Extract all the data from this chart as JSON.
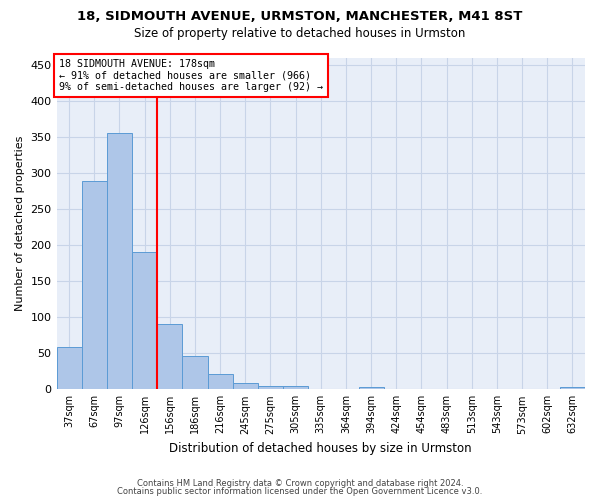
{
  "title1": "18, SIDMOUTH AVENUE, URMSTON, MANCHESTER, M41 8ST",
  "title2": "Size of property relative to detached houses in Urmston",
  "xlabel": "Distribution of detached houses by size in Urmston",
  "ylabel": "Number of detached properties",
  "footer1": "Contains HM Land Registry data © Crown copyright and database right 2024.",
  "footer2": "Contains public sector information licensed under the Open Government Licence v3.0.",
  "bin_labels": [
    "37sqm",
    "67sqm",
    "97sqm",
    "126sqm",
    "156sqm",
    "186sqm",
    "216sqm",
    "245sqm",
    "275sqm",
    "305sqm",
    "335sqm",
    "364sqm",
    "394sqm",
    "424sqm",
    "454sqm",
    "483sqm",
    "513sqm",
    "543sqm",
    "573sqm",
    "602sqm",
    "632sqm"
  ],
  "bar_heights": [
    59,
    289,
    355,
    191,
    91,
    46,
    21,
    9,
    4,
    4,
    0,
    0,
    3,
    0,
    0,
    0,
    0,
    0,
    0,
    0,
    3
  ],
  "bar_color": "#aec6e8",
  "bar_edge_color": "#5b9bd5",
  "grid_color": "#c8d4e8",
  "vline_x": 3.5,
  "annotation_text": "18 SIDMOUTH AVENUE: 178sqm\n← 91% of detached houses are smaller (966)\n9% of semi-detached houses are larger (92) →",
  "annotation_box_color": "white",
  "annotation_box_edge": "red",
  "vline_color": "red",
  "ylim": [
    0,
    460
  ],
  "yticks": [
    0,
    50,
    100,
    150,
    200,
    250,
    300,
    350,
    400,
    450
  ],
  "bg_color": "#e8eef8",
  "fig_width": 6.0,
  "fig_height": 5.0,
  "dpi": 100
}
